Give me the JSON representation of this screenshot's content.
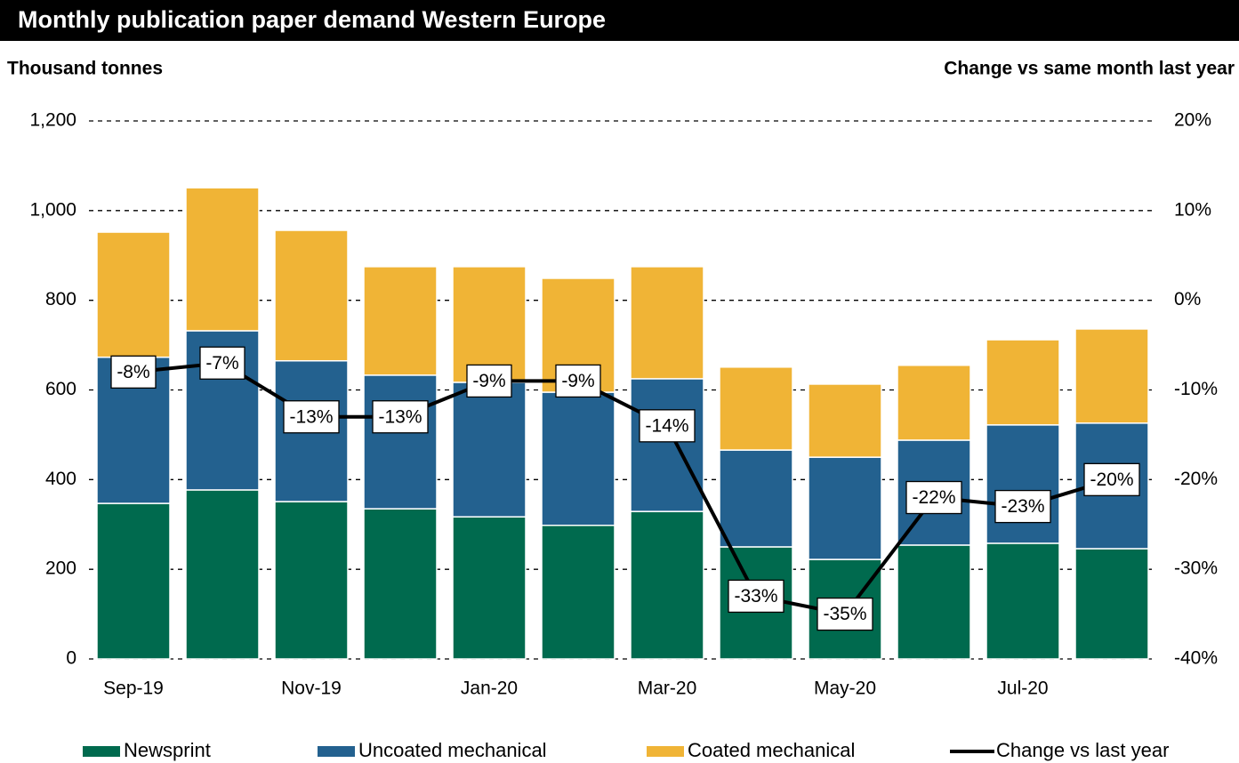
{
  "chart_data": {
    "type": "bar",
    "title": "Monthly publication paper demand Western Europe",
    "y_label": "Thousand tonnes",
    "y2_label": "Change vs same month last year",
    "categories": [
      "Sep-19",
      null,
      "Nov-19",
      null,
      "Jan-20",
      null,
      "Mar-20",
      null,
      "May-20",
      null,
      "Jul-20",
      null
    ],
    "stacked": true,
    "series": [
      {
        "name": "Newsprint",
        "color": "#006a4e",
        "values": [
          347,
          377,
          351,
          335,
          317,
          298,
          329,
          250,
          222,
          254,
          258,
          246
        ]
      },
      {
        "name": "Uncoated mechanical",
        "color": "#23618f",
        "values": [
          326,
          355,
          314,
          298,
          300,
          297,
          296,
          216,
          228,
          234,
          264,
          280
        ]
      },
      {
        "name": "Coated mechanical",
        "color": "#f0b436",
        "values": [
          279,
          319,
          291,
          242,
          258,
          254,
          250,
          185,
          163,
          167,
          190,
          210
        ]
      },
      {
        "name": "Change vs last year",
        "type": "line",
        "axis": "y2",
        "color": "#000000",
        "values": [
          -8,
          -7,
          -13,
          -13,
          -9,
          -9,
          -14,
          -33,
          -35,
          -22,
          -23,
          -20
        ],
        "value_labels": [
          "-8%",
          "-7%",
          "-13%",
          "-13%",
          "-9%",
          "-9%",
          "-14%",
          "-33%",
          "-35%",
          "-22%",
          "-23%",
          "-20%"
        ]
      }
    ],
    "ylim": [
      0,
      1200
    ],
    "yticks": [
      0,
      200,
      400,
      600,
      800,
      {
        "value": 1000,
        "label": "1,000"
      },
      {
        "value": 1200,
        "label": "1,200"
      }
    ],
    "y2lim": [
      -40,
      20
    ],
    "y2ticks": [
      {
        "value": -40,
        "label": "-40%"
      },
      {
        "value": -30,
        "label": "-30%"
      },
      {
        "value": -20,
        "label": "-20%"
      },
      {
        "value": -10,
        "label": "-10%"
      },
      {
        "value": 0,
        "label": "0%"
      },
      {
        "value": 10,
        "label": "10%"
      },
      {
        "value": 20,
        "label": "20%"
      }
    ],
    "grid": true,
    "legend": "bottom"
  }
}
